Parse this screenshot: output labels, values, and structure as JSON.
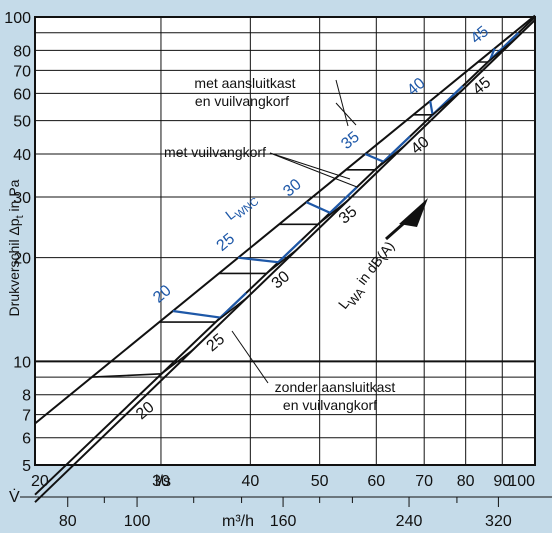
{
  "chart_data": {
    "type": "line",
    "title": "",
    "ylabel": "Drukverschil Δp",
    "ylabel_sub": "t",
    "ylabel_unit": " in Pa",
    "x_unit": "l/s",
    "x_symbol": "V̇",
    "x_scale": "log",
    "xlim": [
      20,
      100
    ],
    "x_ticks": [
      20,
      30,
      40,
      50,
      60,
      70,
      80,
      90,
      100
    ],
    "x_ticks_m3h": [
      80,
      100,
      160,
      240,
      320
    ],
    "m3h_unit": "m³/h",
    "y_scale": "log",
    "ylim": [
      5,
      100
    ],
    "y_ticks": [
      5,
      6,
      7,
      8,
      10,
      20,
      30,
      40,
      50,
      60,
      70,
      80,
      100
    ],
    "grid": true,
    "series": [
      {
        "name": "met aansluitkast en vuilvangkorf",
        "x": [
          20,
          100
        ],
        "y": [
          6.6,
          101
        ]
      },
      {
        "name": "met vuilvangkorf",
        "x": [
          20,
          100
        ],
        "y": [
          4.1,
          100
        ]
      },
      {
        "name": "zonder aansluitkast en vuilvangkorf",
        "x": [
          20,
          100
        ],
        "y": [
          3.9,
          98
        ]
      }
    ],
    "annotations": {
      "labels": [
        {
          "id": "aansluit",
          "text": [
            "met aansluitkast",
            "en vuilvangkorf"
          ]
        },
        {
          "id": "vuilvang",
          "text": [
            "met vuilvangkorf"
          ]
        },
        {
          "id": "zonder",
          "text": [
            "zonder aansluitkast",
            "en vuilvangkorf"
          ]
        }
      ],
      "lwnc_prefix": "L",
      "lwnc_sub": "WNC",
      "lwnc_values": [
        20,
        25,
        30,
        35,
        40,
        45
      ],
      "lwa_prefix": "L",
      "lwa_sub": "WA",
      "lwa_suffix": " in dB(A)",
      "lwa_values": [
        20,
        25,
        30,
        35,
        40,
        45
      ]
    },
    "colors": {
      "background": "#c5dbe9",
      "plot": "#ffffff",
      "blue": "#1e58a8",
      "line": "#111111"
    }
  }
}
